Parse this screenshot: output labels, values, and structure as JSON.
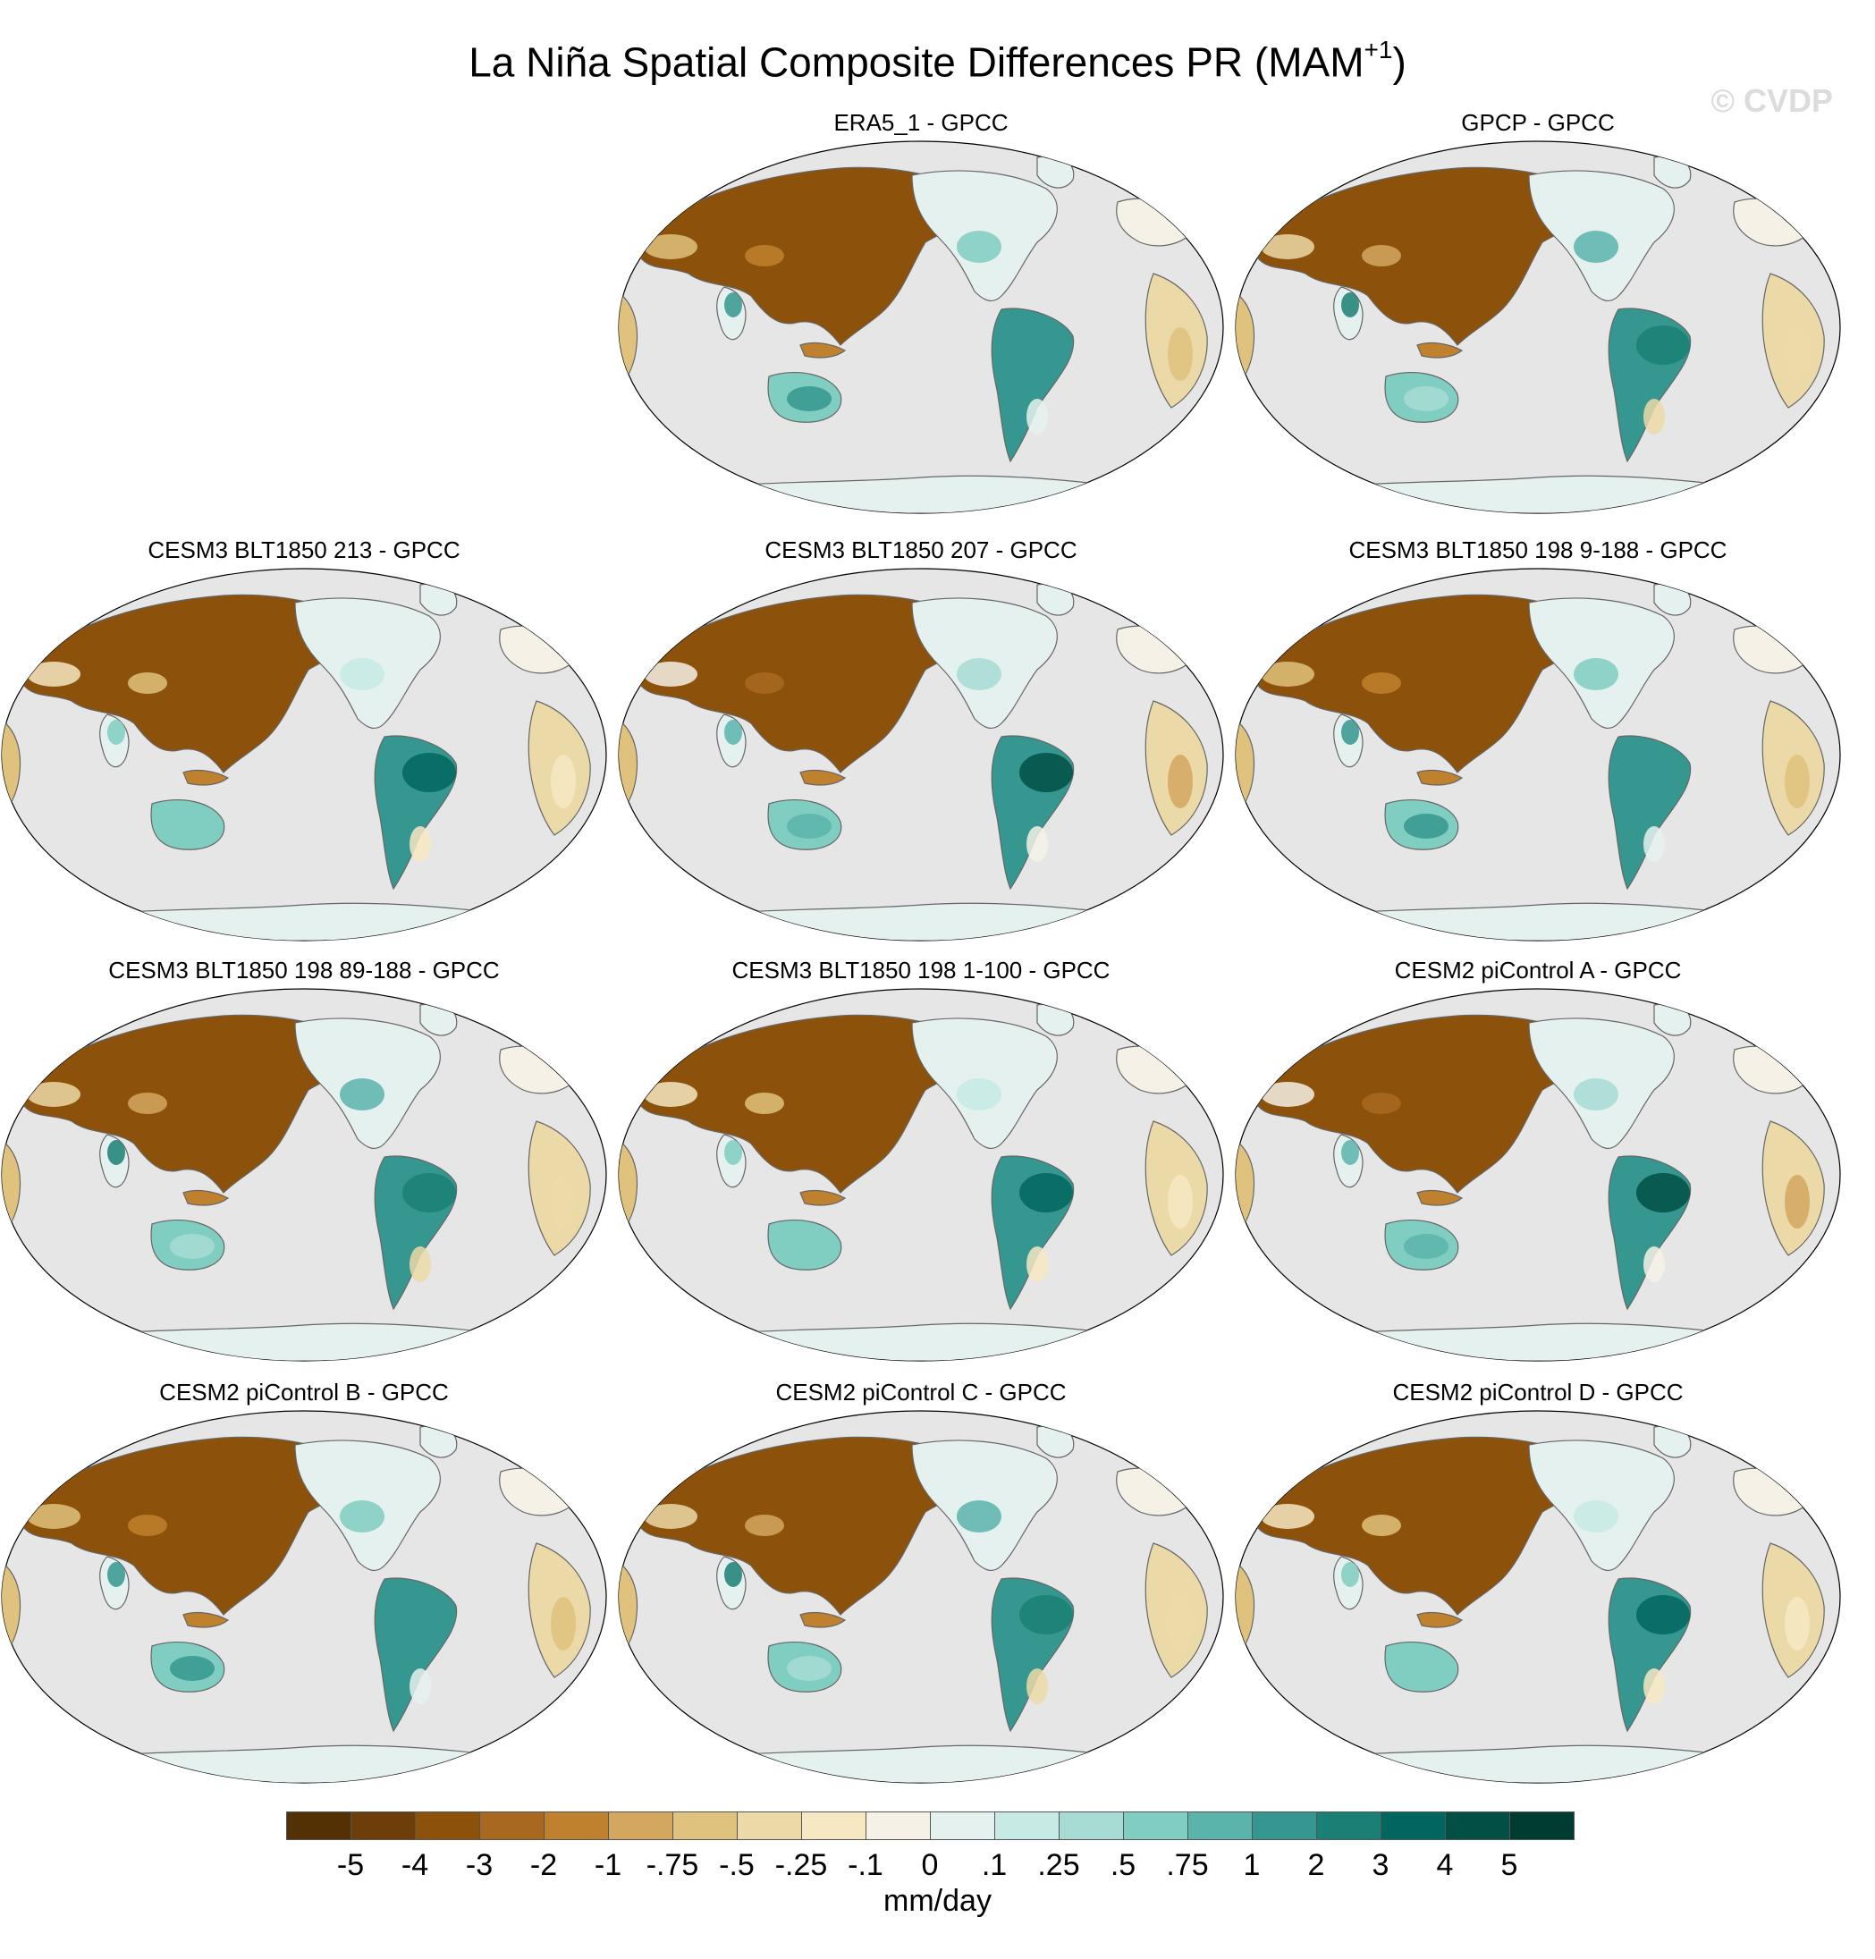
{
  "figure": {
    "title": "La Niña Spatial Composite Differences PR (MAM",
    "title_superscript": "+1",
    "title_close": ")",
    "watermark": "© CVDP"
  },
  "panels": [
    {
      "title": "ERA5_1 - GPCC"
    },
    {
      "title": "GPCP - GPCC"
    },
    {
      "title": "CESM3 BLT1850 213 - GPCC"
    },
    {
      "title": "CESM3 BLT1850 207 - GPCC"
    },
    {
      "title": "CESM3 BLT1850 198 9-188 - GPCC"
    },
    {
      "title": "CESM3 BLT1850 198 89-188 - GPCC"
    },
    {
      "title": "CESM3 BLT1850 198 1-100 - GPCC"
    },
    {
      "title": "CESM2 piControl A - GPCC"
    },
    {
      "title": "CESM2 piControl B - GPCC"
    },
    {
      "title": "CESM2 piControl C - GPCC"
    },
    {
      "title": "CESM2 piControl D - GPCC"
    }
  ],
  "map": {
    "projection": "Robinson, Pacific-centered",
    "ocean_color": "#e6e6e6",
    "coastline_color": "#666666"
  },
  "colorbar": {
    "units": "mm/day",
    "tick_labels": [
      "-5",
      "-4",
      "-3",
      "-2",
      "-1",
      "-.75",
      "-.5",
      "-.25",
      "-.1",
      "0",
      ".1",
      ".25",
      ".5",
      ".75",
      "1",
      "2",
      "3",
      "4",
      "5"
    ],
    "colors": [
      "#543005",
      "#6e3e0a",
      "#8c510a",
      "#a86820",
      "#bf812d",
      "#d3a760",
      "#dfc27d",
      "#ecd9a8",
      "#f6e8c3",
      "#f5f1e7",
      "#e5f1ef",
      "#c7eae5",
      "#a6dcd3",
      "#80cdc1",
      "#5ab4ac",
      "#35978f",
      "#1a7f74",
      "#01665e",
      "#014f45",
      "#003c30"
    ]
  }
}
